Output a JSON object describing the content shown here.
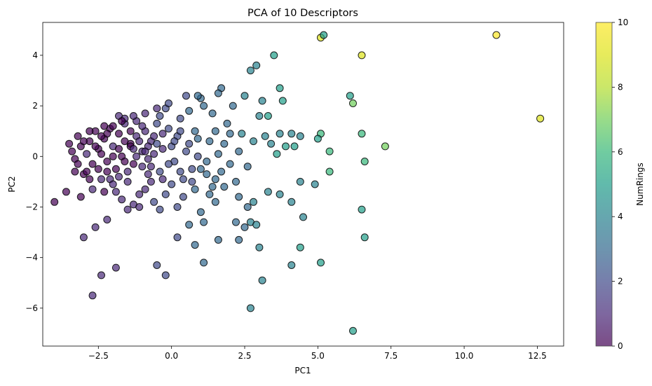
{
  "chart_data": {
    "type": "scatter",
    "title": "PCA of 10 Descriptors",
    "xlabel": "PC1",
    "ylabel": "PC2",
    "xlim": [
      -4.4,
      13.4
    ],
    "ylim": [
      -7.5,
      5.3
    ],
    "xticks": [
      -2.5,
      0.0,
      2.5,
      5.0,
      7.5,
      10.0,
      12.5
    ],
    "xtick_labels": [
      "−2.5",
      "0.0",
      "2.5",
      "5.0",
      "7.5",
      "10.0",
      "12.5"
    ],
    "yticks": [
      -6,
      -4,
      -2,
      0,
      2,
      4
    ],
    "ytick_labels": [
      "−6",
      "−4",
      "−2",
      "0",
      "2",
      "4"
    ],
    "grid": false,
    "colorbar": {
      "label": "NumRings",
      "colormap": "viridis",
      "range": [
        0,
        10
      ],
      "ticks": [
        0,
        2,
        4,
        6,
        8,
        10
      ],
      "tick_labels": [
        "0",
        "2",
        "4",
        "6",
        "8",
        "10"
      ]
    },
    "point_style": {
      "edge_color": "#000000",
      "alpha": 0.7
    },
    "points": [
      [
        -4.0,
        -1.8,
        0
      ],
      [
        -3.5,
        0.5,
        0
      ],
      [
        -3.4,
        0.2,
        0
      ],
      [
        -3.3,
        -0.1,
        0
      ],
      [
        -3.2,
        0.8,
        0
      ],
      [
        -3.1,
        0.4,
        0
      ],
      [
        -3.0,
        -0.7,
        0
      ],
      [
        -2.9,
        0.1,
        1
      ],
      [
        -2.8,
        0.6,
        0
      ],
      [
        -2.7,
        -0.3,
        0
      ],
      [
        -2.6,
        1.0,
        0
      ],
      [
        -2.5,
        0.3,
        0
      ],
      [
        -2.4,
        -0.9,
        1
      ],
      [
        -2.3,
        0.7,
        0
      ],
      [
        -2.2,
        -0.2,
        0
      ],
      [
        -2.1,
        1.1,
        0
      ],
      [
        -2.0,
        0.4,
        1
      ],
      [
        -1.9,
        -0.5,
        0
      ],
      [
        -1.8,
        0.9,
        0
      ],
      [
        -1.7,
        0.0,
        0
      ],
      [
        -1.6,
        1.3,
        1
      ],
      [
        -1.5,
        -1.0,
        1
      ],
      [
        -1.4,
        0.5,
        0
      ],
      [
        -1.3,
        -0.3,
        0
      ],
      [
        -1.2,
        0.8,
        1
      ],
      [
        -1.1,
        -1.5,
        1
      ],
      [
        -1.0,
        0.2,
        1
      ],
      [
        -0.9,
        1.0,
        1
      ],
      [
        -0.8,
        -0.7,
        1
      ],
      [
        -0.7,
        0.6,
        1
      ],
      [
        -3.6,
        -1.4,
        0
      ],
      [
        -3.3,
        -0.6,
        0
      ],
      [
        -3.1,
        -1.6,
        0
      ],
      [
        -2.9,
        -0.6,
        0
      ],
      [
        -2.7,
        -1.3,
        1
      ],
      [
        -2.5,
        -0.5,
        0
      ],
      [
        -2.3,
        -1.4,
        0
      ],
      [
        -2.1,
        -0.9,
        1
      ],
      [
        -1.9,
        -1.4,
        1
      ],
      [
        -1.7,
        -1.7,
        1
      ],
      [
        -1.5,
        -2.1,
        1
      ],
      [
        -1.3,
        -1.9,
        1
      ],
      [
        -1.1,
        -2.0,
        1
      ],
      [
        -0.9,
        -1.3,
        1
      ],
      [
        -0.7,
        -1.0,
        1
      ],
      [
        -2.0,
        0.0,
        0
      ],
      [
        -1.8,
        0.3,
        0
      ],
      [
        -1.6,
        0.6,
        0
      ],
      [
        -1.4,
        1.0,
        0
      ],
      [
        -1.2,
        1.4,
        1
      ],
      [
        -1.0,
        1.2,
        1
      ],
      [
        -0.8,
        0.4,
        1
      ],
      [
        -0.6,
        0.1,
        1
      ],
      [
        -0.4,
        1.6,
        2
      ],
      [
        -0.3,
        0.9,
        1
      ],
      [
        -2.2,
        0.9,
        0
      ],
      [
        -2.0,
        1.2,
        0
      ],
      [
        -1.8,
        1.6,
        1
      ],
      [
        -1.6,
        1.5,
        1
      ],
      [
        -1.4,
        0.4,
        0
      ],
      [
        -1.2,
        0.0,
        1
      ],
      [
        -1.0,
        -0.4,
        1
      ],
      [
        -0.8,
        -0.1,
        1
      ],
      [
        -0.6,
        0.8,
        1
      ],
      [
        -0.5,
        1.3,
        2
      ],
      [
        -0.4,
        -0.6,
        2
      ],
      [
        -0.3,
        0.3,
        1
      ],
      [
        -0.2,
        1.9,
        2
      ],
      [
        -0.1,
        1.1,
        2
      ],
      [
        0.0,
        0.4,
        2
      ],
      [
        0.1,
        -0.2,
        2
      ],
      [
        0.2,
        0.8,
        2
      ],
      [
        0.3,
        1.5,
        2
      ],
      [
        0.4,
        -0.9,
        2
      ],
      [
        0.5,
        0.2,
        2
      ],
      [
        0.6,
        1.8,
        3
      ],
      [
        0.7,
        -0.5,
        2
      ],
      [
        0.8,
        1.0,
        3
      ],
      [
        0.9,
        0.0,
        2
      ],
      [
        1.0,
        2.3,
        3
      ],
      [
        -0.6,
        -1.8,
        2
      ],
      [
        -0.4,
        -2.1,
        2
      ],
      [
        -0.2,
        -1.5,
        2
      ],
      [
        0.0,
        -1.1,
        2
      ],
      [
        0.2,
        -2.0,
        2
      ],
      [
        0.4,
        -1.6,
        2
      ],
      [
        0.6,
        -2.7,
        3
      ],
      [
        0.8,
        -1.3,
        3
      ],
      [
        1.0,
        -2.2,
        3
      ],
      [
        1.1,
        -2.6,
        3
      ],
      [
        1.2,
        -0.7,
        3
      ],
      [
        1.3,
        0.6,
        3
      ],
      [
        1.4,
        1.7,
        3
      ],
      [
        1.5,
        -1.8,
        3
      ],
      [
        1.6,
        0.1,
        3
      ],
      [
        1.7,
        2.7,
        3
      ],
      [
        1.8,
        -1.2,
        3
      ],
      [
        1.9,
        1.3,
        3
      ],
      [
        2.0,
        -0.3,
        3
      ],
      [
        2.1,
        2.0,
        3
      ],
      [
        -2.6,
        -2.8,
        1
      ],
      [
        -2.2,
        -2.5,
        1
      ],
      [
        -1.9,
        -4.4,
        1
      ],
      [
        -2.4,
        -4.7,
        1
      ],
      [
        -2.7,
        -5.5,
        1
      ],
      [
        -3.0,
        -3.2,
        1
      ],
      [
        -0.5,
        -4.3,
        2
      ],
      [
        -0.2,
        -4.7,
        2
      ],
      [
        0.2,
        -3.2,
        2
      ],
      [
        0.8,
        -3.5,
        3
      ],
      [
        1.1,
        -4.2,
        3
      ],
      [
        1.6,
        -3.3,
        3
      ],
      [
        2.3,
        -3.3,
        3
      ],
      [
        2.7,
        -6.0,
        4
      ],
      [
        3.0,
        -3.6,
        4
      ],
      [
        3.1,
        -4.9,
        4
      ],
      [
        2.2,
        -2.6,
        3
      ],
      [
        2.5,
        -2.8,
        3
      ],
      [
        2.7,
        -2.6,
        4
      ],
      [
        2.9,
        -2.7,
        4
      ],
      [
        2.3,
        -1.6,
        3
      ],
      [
        2.6,
        -2.0,
        3
      ],
      [
        2.8,
        -1.8,
        4
      ],
      [
        3.3,
        -1.4,
        4
      ],
      [
        3.7,
        -1.5,
        4
      ],
      [
        4.1,
        -1.8,
        4
      ],
      [
        4.1,
        -4.3,
        4
      ],
      [
        4.4,
        -3.6,
        5
      ],
      [
        4.5,
        -2.4,
        4
      ],
      [
        4.4,
        -1.0,
        4
      ],
      [
        4.9,
        -1.1,
        4
      ],
      [
        5.1,
        -4.2,
        5
      ],
      [
        6.2,
        -6.9,
        5
      ],
      [
        6.5,
        -2.1,
        5
      ],
      [
        6.6,
        -3.2,
        5
      ],
      [
        1.5,
        1.0,
        3
      ],
      [
        1.6,
        2.5,
        3
      ],
      [
        1.8,
        0.5,
        3
      ],
      [
        2.0,
        0.9,
        3
      ],
      [
        2.2,
        -1.0,
        3
      ],
      [
        2.3,
        0.2,
        3
      ],
      [
        2.4,
        0.9,
        4
      ],
      [
        2.5,
        2.4,
        4
      ],
      [
        2.6,
        -0.4,
        3
      ],
      [
        2.7,
        3.4,
        4
      ],
      [
        2.8,
        0.6,
        4
      ],
      [
        2.9,
        3.6,
        4
      ],
      [
        3.0,
        1.6,
        4
      ],
      [
        3.1,
        2.2,
        4
      ],
      [
        3.2,
        0.8,
        4
      ],
      [
        3.3,
        1.6,
        5
      ],
      [
        3.4,
        0.5,
        4
      ],
      [
        3.5,
        4.0,
        5
      ],
      [
        3.6,
        0.1,
        5
      ],
      [
        3.7,
        0.9,
        4
      ],
      [
        3.7,
        2.7,
        5
      ],
      [
        3.8,
        2.2,
        5
      ],
      [
        3.9,
        0.4,
        5
      ],
      [
        4.1,
        0.9,
        4
      ],
      [
        4.2,
        0.4,
        5
      ],
      [
        4.4,
        0.8,
        4
      ],
      [
        5.1,
        0.9,
        6
      ],
      [
        5.0,
        0.7,
        5
      ],
      [
        5.4,
        0.2,
        6
      ],
      [
        5.4,
        -0.6,
        6
      ],
      [
        6.1,
        2.4,
        5
      ],
      [
        6.2,
        2.1,
        7
      ],
      [
        6.5,
        0.9,
        6
      ],
      [
        6.6,
        -0.2,
        6
      ],
      [
        7.3,
        0.4,
        7
      ],
      [
        5.1,
        4.7,
        9
      ],
      [
        5.2,
        4.8,
        5
      ],
      [
        6.5,
        4.0,
        9
      ],
      [
        11.1,
        4.8,
        10
      ],
      [
        12.6,
        1.5,
        9
      ],
      [
        0.9,
        2.4,
        3
      ],
      [
        1.1,
        2.0,
        3
      ],
      [
        0.5,
        2.4,
        2
      ],
      [
        -0.1,
        2.1,
        2
      ],
      [
        -0.5,
        1.9,
        1
      ],
      [
        -0.9,
        1.7,
        1
      ],
      [
        -1.3,
        1.6,
        1
      ],
      [
        -1.7,
        1.4,
        0
      ],
      [
        -2.3,
        1.2,
        0
      ],
      [
        -2.8,
        1.0,
        0
      ],
      [
        0.3,
        -0.6,
        2
      ],
      [
        0.6,
        0.5,
        2
      ],
      [
        0.9,
        0.7,
        3
      ],
      [
        1.2,
        -0.2,
        3
      ],
      [
        1.4,
        -1.2,
        3
      ],
      [
        0.7,
        -1.0,
        2
      ],
      [
        1.0,
        -0.5,
        3
      ],
      [
        1.3,
        -1.5,
        3
      ],
      [
        1.5,
        -0.9,
        3
      ],
      [
        1.7,
        -0.6,
        3
      ],
      [
        -1.5,
        -0.6,
        1
      ],
      [
        -1.3,
        0.3,
        1
      ],
      [
        -1.1,
        0.6,
        1
      ],
      [
        -0.9,
        0.2,
        1
      ],
      [
        -0.7,
        -0.4,
        1
      ],
      [
        -0.5,
        0.5,
        2
      ],
      [
        -0.3,
        -0.9,
        1
      ],
      [
        -0.1,
        -0.3,
        2
      ],
      [
        0.1,
        0.6,
        2
      ],
      [
        0.3,
        1.0,
        2
      ],
      [
        -2.4,
        0.1,
        0
      ],
      [
        -2.2,
        -0.6,
        0
      ],
      [
        -2.0,
        -1.1,
        1
      ],
      [
        -1.8,
        -0.8,
        1
      ],
      [
        -1.6,
        -0.2,
        0
      ],
      [
        -3.2,
        -0.3,
        0
      ],
      [
        -3.0,
        0.6,
        0
      ],
      [
        -2.8,
        -0.9,
        0
      ],
      [
        -2.6,
        0.4,
        0
      ],
      [
        -2.4,
        0.8,
        0
      ]
    ]
  }
}
